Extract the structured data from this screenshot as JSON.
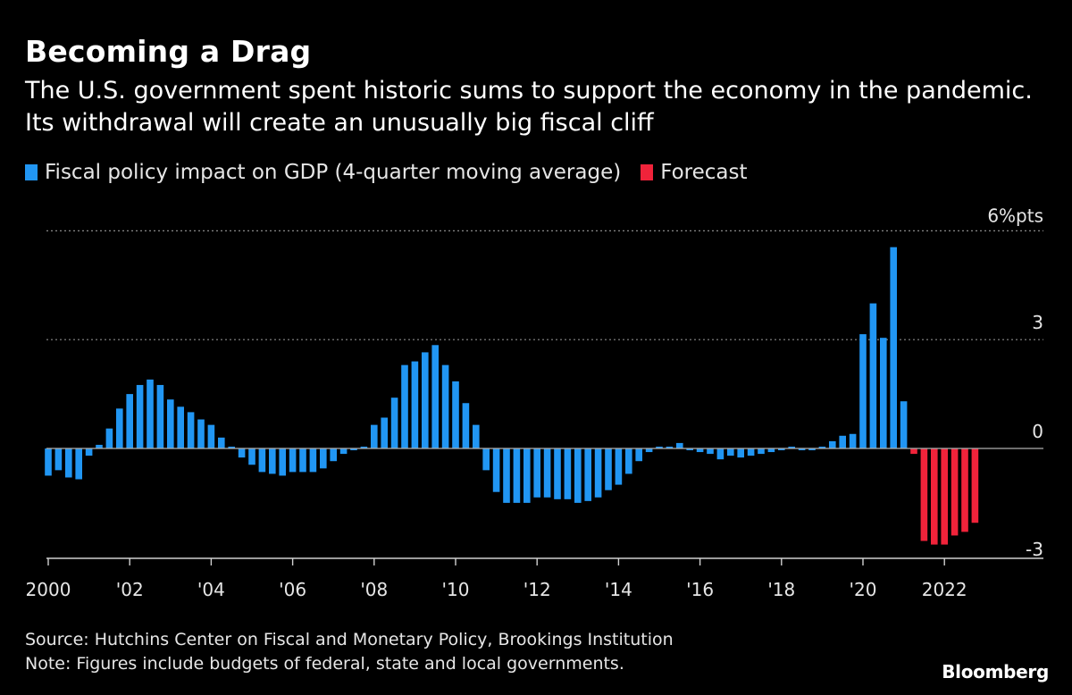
{
  "title": "Becoming a Drag",
  "subtitle": "The U.S. government spent historic sums to support the economy in the pandemic. Its withdrawal will create an unusually big fiscal cliff",
  "legend": {
    "actual_label": "Fiscal policy impact on GDP (4-quarter moving average)",
    "forecast_label": "Forecast"
  },
  "colors": {
    "actual": "#2196f3",
    "forecast": "#f0233a",
    "background": "#000000"
  },
  "source": "Source: Hutchins Center on Fiscal and Monetary Policy, Brookings Institution",
  "note": "Note: Figures include budgets of federal, state and local governments.",
  "brand": "Bloomberg",
  "chart_data": {
    "type": "bar",
    "ylim": [
      -3,
      6
    ],
    "yticks": [
      {
        "value": 6,
        "label": "6%pts"
      },
      {
        "value": 3,
        "label": "3"
      },
      {
        "value": 0,
        "label": "0"
      },
      {
        "value": -3,
        "label": "-3"
      }
    ],
    "xticks": [
      {
        "year": 2000,
        "label": "2000"
      },
      {
        "year": 2002,
        "label": "'02"
      },
      {
        "year": 2004,
        "label": "'04"
      },
      {
        "year": 2006,
        "label": "'06"
      },
      {
        "year": 2008,
        "label": "'08"
      },
      {
        "year": 2010,
        "label": "'10"
      },
      {
        "year": 2012,
        "label": "'12"
      },
      {
        "year": 2014,
        "label": "'14"
      },
      {
        "year": 2016,
        "label": "'16"
      },
      {
        "year": 2018,
        "label": "'18"
      },
      {
        "year": 2020,
        "label": "'20"
      },
      {
        "year": 2022,
        "label": "2022"
      }
    ],
    "start_year": 2000,
    "series": [
      {
        "name": "Fiscal policy impact on GDP (4-quarter moving average)",
        "values": [
          -0.75,
          -0.6,
          -0.8,
          -0.85,
          -0.2,
          0.1,
          0.55,
          1.1,
          1.5,
          1.75,
          1.9,
          1.75,
          1.35,
          1.15,
          1.0,
          0.8,
          0.65,
          0.3,
          0.05,
          -0.25,
          -0.45,
          -0.65,
          -0.7,
          -0.75,
          -0.65,
          -0.65,
          -0.65,
          -0.55,
          -0.35,
          -0.15,
          -0.05,
          0.05,
          0.65,
          0.85,
          1.4,
          2.3,
          2.4,
          2.65,
          2.85,
          2.3,
          1.85,
          1.25,
          0.65,
          -0.6,
          -1.2,
          -1.5,
          -1.5,
          -1.5,
          -1.35,
          -1.35,
          -1.4,
          -1.4,
          -1.5,
          -1.45,
          -1.35,
          -1.15,
          -1.0,
          -0.7,
          -0.35,
          -0.1,
          0.05,
          0.05,
          0.15,
          -0.05,
          -0.1,
          -0.15,
          -0.3,
          -0.2,
          -0.25,
          -0.2,
          -0.15,
          -0.1,
          -0.05,
          0.05,
          -0.05,
          -0.05,
          0.05,
          0.2,
          0.35,
          0.4,
          3.15,
          4.0,
          3.05,
          5.55,
          1.3
        ]
      },
      {
        "name": "Forecast",
        "offset": 85,
        "values": [
          -0.15,
          -2.55,
          -2.65,
          -2.65,
          -2.4,
          -2.3,
          -2.05
        ]
      }
    ]
  }
}
